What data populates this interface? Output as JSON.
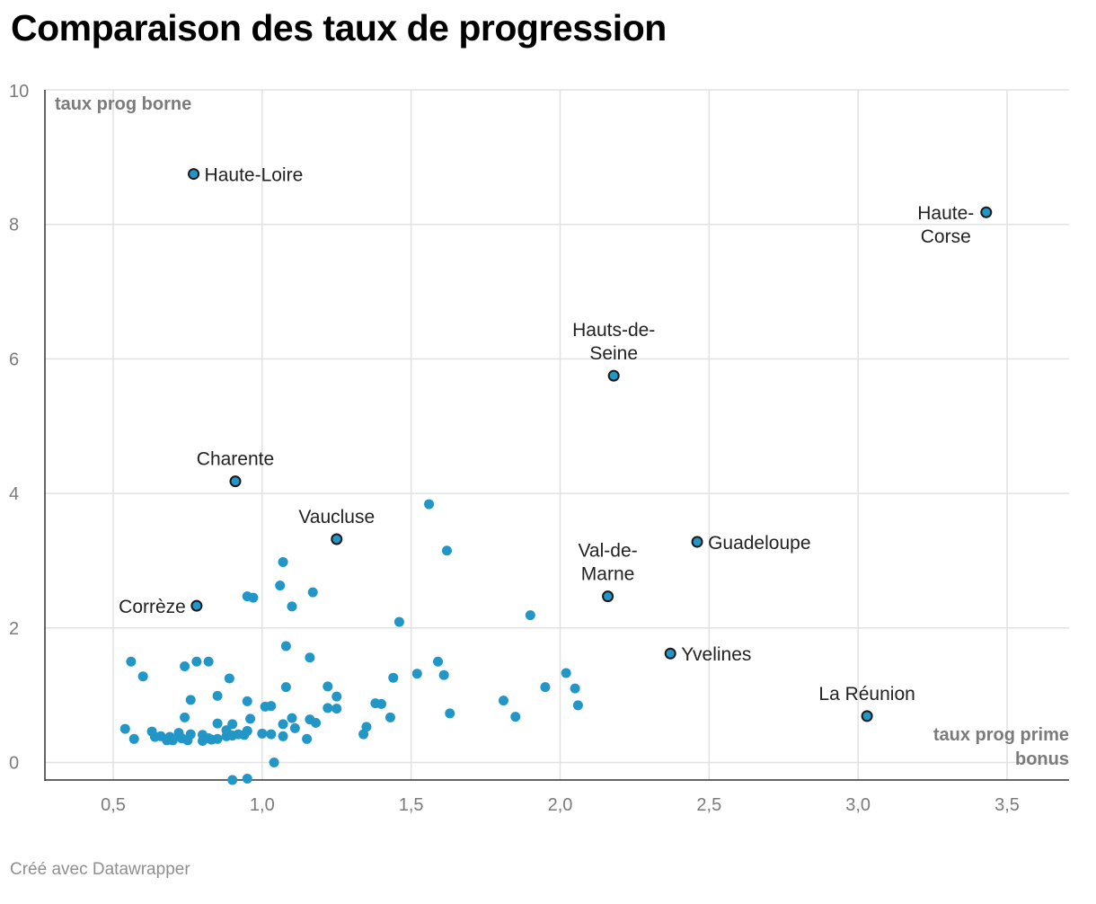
{
  "title": "Comparaison des taux de progression",
  "credit": "Créé avec Datawrapper",
  "colors": {
    "point": "#2196c7",
    "highlight_stroke": "#1a1a1a",
    "grid": "#e2e2e2",
    "axis": "#333333"
  },
  "chart_data": {
    "type": "scatter",
    "title": "Comparaison des taux de progression",
    "xlabel": "taux prog prime bonus",
    "ylabel": "taux prog borne",
    "xlim": [
      0.25,
      3.71
    ],
    "ylim": [
      -0.3,
      10
    ],
    "x_ticks": [
      0.5,
      1.0,
      1.5,
      2.0,
      2.5,
      3.0,
      3.5
    ],
    "x_tick_labels": [
      "0,5",
      "1,0",
      "1,5",
      "2,0",
      "2,5",
      "3,0",
      "3,5"
    ],
    "y_ticks": [
      0,
      2,
      4,
      6,
      8,
      10
    ],
    "y_tick_labels": [
      "0",
      "2",
      "4",
      "6",
      "8",
      "10"
    ],
    "grid": true,
    "labeled_points": [
      {
        "label": "Haute-Loire",
        "x": 0.77,
        "y": 8.75,
        "label_pos": "right"
      },
      {
        "label": "Haute-Corse",
        "x": 3.43,
        "y": 8.18,
        "label_pos": "left"
      },
      {
        "label": "Hauts-de-Seine",
        "x": 2.18,
        "y": 5.75,
        "label_pos": "above"
      },
      {
        "label": "Charente",
        "x": 0.91,
        "y": 4.18,
        "label_pos": "above"
      },
      {
        "label": "Vaucluse",
        "x": 1.25,
        "y": 3.32,
        "label_pos": "above"
      },
      {
        "label": "Guadeloupe",
        "x": 2.46,
        "y": 3.28,
        "label_pos": "right"
      },
      {
        "label": "Val-de-Marne",
        "x": 2.16,
        "y": 2.47,
        "label_pos": "above"
      },
      {
        "label": "Corrèze",
        "x": 0.78,
        "y": 2.33,
        "label_pos": "left"
      },
      {
        "label": "Yvelines",
        "x": 2.37,
        "y": 1.62,
        "label_pos": "right"
      },
      {
        "label": "La Réunion",
        "x": 3.03,
        "y": 0.69,
        "label_pos": "above"
      }
    ],
    "points": [
      [
        1.56,
        3.84
      ],
      [
        1.62,
        3.15
      ],
      [
        1.07,
        2.98
      ],
      [
        1.06,
        2.63
      ],
      [
        1.17,
        2.53
      ],
      [
        0.95,
        2.47
      ],
      [
        0.97,
        2.45
      ],
      [
        1.1,
        2.32
      ],
      [
        1.9,
        2.19
      ],
      [
        1.46,
        2.09
      ],
      [
        1.08,
        1.73
      ],
      [
        1.16,
        1.56
      ],
      [
        0.56,
        1.5
      ],
      [
        0.78,
        1.5
      ],
      [
        0.82,
        1.5
      ],
      [
        1.59,
        1.5
      ],
      [
        0.74,
        1.43
      ],
      [
        1.52,
        1.32
      ],
      [
        1.61,
        1.3
      ],
      [
        2.02,
        1.33
      ],
      [
        0.6,
        1.28
      ],
      [
        0.89,
        1.25
      ],
      [
        1.44,
        1.26
      ],
      [
        1.08,
        1.12
      ],
      [
        1.22,
        1.13
      ],
      [
        1.95,
        1.12
      ],
      [
        2.05,
        1.1
      ],
      [
        1.25,
        0.98
      ],
      [
        0.85,
        0.99
      ],
      [
        0.76,
        0.93
      ],
      [
        0.95,
        0.91
      ],
      [
        1.81,
        0.92
      ],
      [
        1.38,
        0.88
      ],
      [
        1.4,
        0.87
      ],
      [
        2.06,
        0.85
      ],
      [
        1.01,
        0.83
      ],
      [
        1.03,
        0.84
      ],
      [
        1.22,
        0.81
      ],
      [
        1.25,
        0.8
      ],
      [
        1.63,
        0.73
      ],
      [
        1.85,
        0.68
      ],
      [
        0.74,
        0.67
      ],
      [
        0.96,
        0.65
      ],
      [
        1.1,
        0.66
      ],
      [
        1.16,
        0.64
      ],
      [
        1.43,
        0.67
      ],
      [
        0.85,
        0.58
      ],
      [
        0.9,
        0.57
      ],
      [
        1.07,
        0.57
      ],
      [
        1.18,
        0.59
      ],
      [
        1.35,
        0.53
      ],
      [
        0.54,
        0.5
      ],
      [
        0.88,
        0.48
      ],
      [
        0.95,
        0.47
      ],
      [
        1.11,
        0.51
      ],
      [
        0.63,
        0.46
      ],
      [
        0.72,
        0.44
      ],
      [
        0.76,
        0.42
      ],
      [
        0.9,
        0.4
      ],
      [
        1.0,
        0.43
      ],
      [
        0.92,
        0.42
      ],
      [
        1.03,
        0.42
      ],
      [
        0.66,
        0.39
      ],
      [
        0.69,
        0.38
      ],
      [
        0.64,
        0.38
      ],
      [
        0.8,
        0.41
      ],
      [
        0.82,
        0.36
      ],
      [
        0.85,
        0.35
      ],
      [
        0.88,
        0.39
      ],
      [
        0.94,
        0.41
      ],
      [
        1.07,
        0.39
      ],
      [
        1.34,
        0.42
      ],
      [
        0.7,
        0.33
      ],
      [
        0.73,
        0.36
      ],
      [
        0.8,
        0.32
      ],
      [
        0.83,
        0.34
      ],
      [
        0.57,
        0.35
      ],
      [
        0.68,
        0.33
      ],
      [
        0.75,
        0.33
      ],
      [
        1.15,
        0.35
      ],
      [
        1.04,
        0.0
      ],
      [
        0.9,
        -0.26
      ],
      [
        0.95,
        -0.24
      ]
    ]
  }
}
